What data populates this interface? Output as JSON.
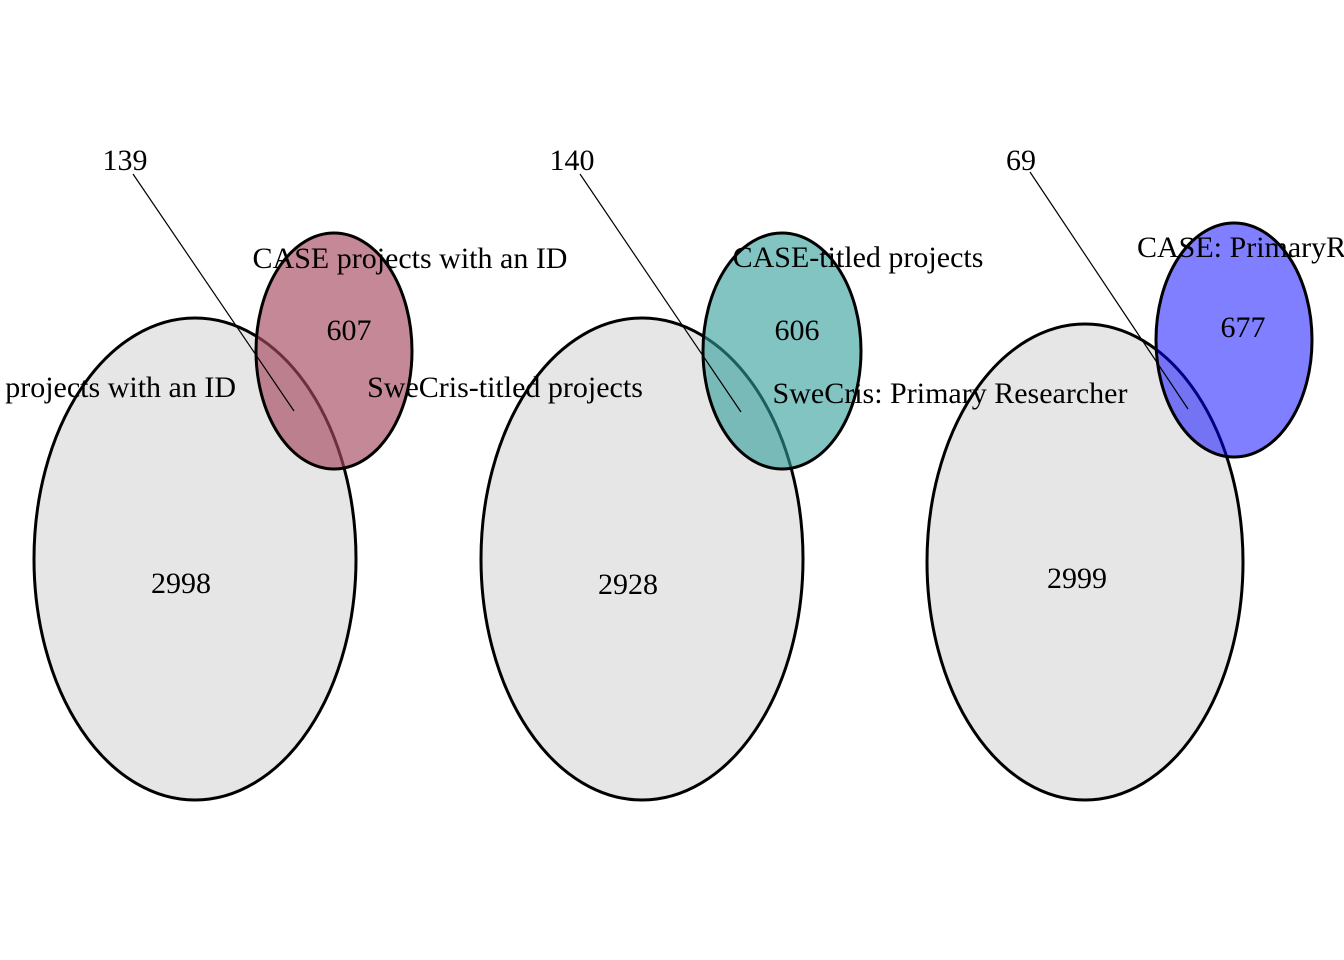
{
  "colors": {
    "background": "#ffffff",
    "swecris_fill": "#e6e6e6",
    "outline": "#000000"
  },
  "diagrams": [
    {
      "set_a_label": "SweCris projects with an ID",
      "set_b_label": "CASE projects with an ID",
      "only_a": "2998",
      "only_b": "607",
      "overlap": "139",
      "set_b_color": "#a6485f"
    },
    {
      "set_a_label": "SweCris-titled projects",
      "set_b_label": "CASE-titled projects",
      "only_a": "2928",
      "only_b": "606",
      "overlap": "140",
      "set_b_color": "#2e9c9a"
    },
    {
      "set_a_label": "SweCris: Primary Researcher",
      "set_b_label": "CASE: PrimaryResearcher",
      "only_a": "2999",
      "only_b": "677",
      "overlap": "69",
      "set_b_color": "#0000ff"
    }
  ]
}
